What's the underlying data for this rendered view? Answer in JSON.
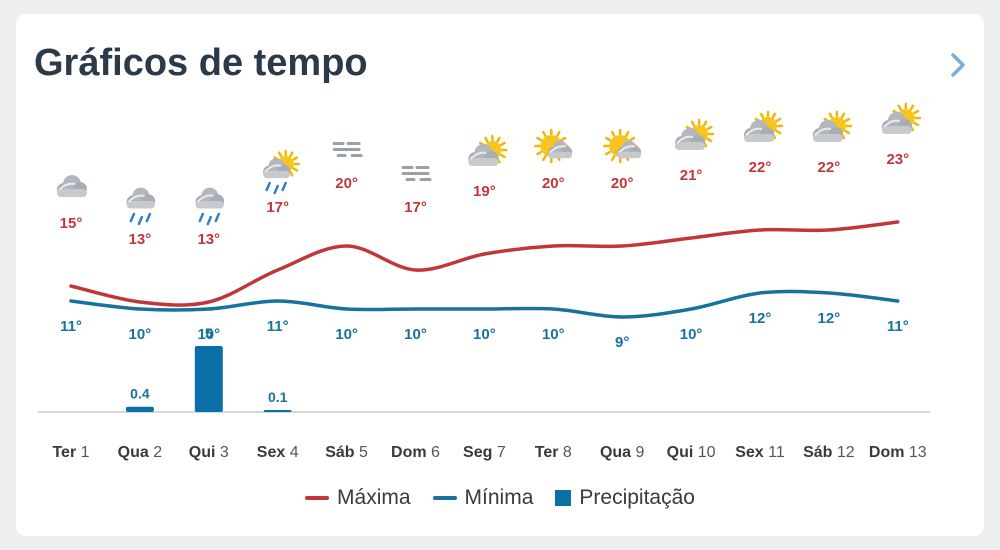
{
  "header": {
    "title": "Gráficos de tempo",
    "next_icon": "chevron-right-icon"
  },
  "colors": {
    "max": "#c0373b",
    "min": "#17739c",
    "precip": "#0d6fa8",
    "axis": "#d8d8d8",
    "day_label": "#3a3a3a",
    "day_num": "#555555",
    "title": "#2b3a4a"
  },
  "chart_data": {
    "type": "line",
    "days": [
      {
        "dow": "Ter",
        "num": "1",
        "max": 15,
        "min": 11,
        "precip": null,
        "precip_label": "",
        "icon": "cloud-icon"
      },
      {
        "dow": "Qua",
        "num": "2",
        "max": 13,
        "min": 10,
        "precip": 0.4,
        "precip_label": "0.4",
        "icon": "cloud-rain-icon"
      },
      {
        "dow": "Qui",
        "num": "3",
        "max": 13,
        "min": 10,
        "precip": 5,
        "precip_label": "5",
        "icon": "cloud-rain-icon"
      },
      {
        "dow": "Sex",
        "num": "4",
        "max": 17,
        "min": 11,
        "precip": 0.1,
        "precip_label": "0.1",
        "icon": "sun-cloud-rain-icon"
      },
      {
        "dow": "Sáb",
        "num": "5",
        "max": 20,
        "min": 10,
        "precip": null,
        "precip_label": "",
        "icon": "fog-icon"
      },
      {
        "dow": "Dom",
        "num": "6",
        "max": 17,
        "min": 10,
        "precip": null,
        "precip_label": "",
        "icon": "fog-icon"
      },
      {
        "dow": "Seg",
        "num": "7",
        "max": 19,
        "min": 10,
        "precip": null,
        "precip_label": "",
        "icon": "partly-cloudy-icon"
      },
      {
        "dow": "Ter",
        "num": "8",
        "max": 20,
        "min": 10,
        "precip": null,
        "precip_label": "",
        "icon": "sun-cloud-icon"
      },
      {
        "dow": "Qua",
        "num": "9",
        "max": 20,
        "min": 9,
        "precip": null,
        "precip_label": "",
        "icon": "sun-cloud-icon"
      },
      {
        "dow": "Qui",
        "num": "10",
        "max": 21,
        "min": 10,
        "precip": null,
        "precip_label": "",
        "icon": "partly-cloudy-icon"
      },
      {
        "dow": "Sex",
        "num": "11",
        "max": 22,
        "min": 12,
        "precip": null,
        "precip_label": "",
        "icon": "partly-cloudy-icon"
      },
      {
        "dow": "Sáb",
        "num": "12",
        "max": 22,
        "min": 12,
        "precip": null,
        "precip_label": "",
        "icon": "partly-cloudy-icon"
      },
      {
        "dow": "Dom",
        "num": "13",
        "max": 23,
        "min": 11,
        "precip": null,
        "precip_label": "",
        "icon": "partly-cloudy-icon"
      }
    ],
    "unit": "°",
    "temp_range": [
      8,
      24
    ],
    "precip_range": [
      0,
      5
    ]
  },
  "legend": [
    {
      "label": "Máxima",
      "key": "max",
      "kind": "line"
    },
    {
      "label": "Mínima",
      "key": "min",
      "kind": "line"
    },
    {
      "label": "Precipitação",
      "key": "precip",
      "kind": "box"
    }
  ]
}
